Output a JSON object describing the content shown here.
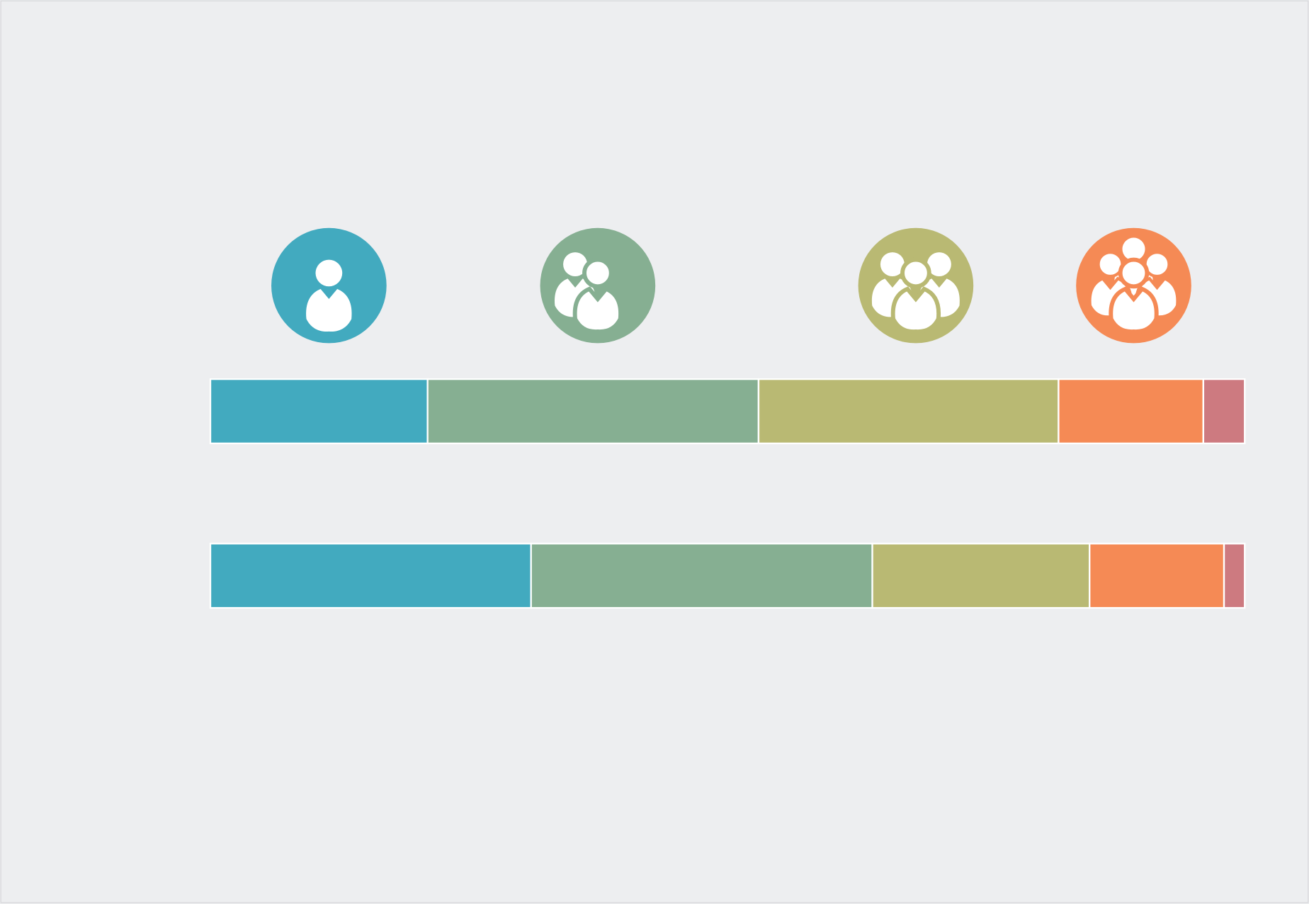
{
  "chart_data": {
    "type": "bar",
    "orientation": "horizontal",
    "stacked": true,
    "categories": [
      null,
      null
    ],
    "xlim": [
      0,
      100
    ],
    "series": [
      {
        "color": "#42aabf",
        "values": [
          21,
          31
        ]
      },
      {
        "color": "#86af92",
        "values": [
          32,
          33
        ]
      },
      {
        "color": "#b9b973",
        "values": [
          29,
          21
        ]
      },
      {
        "color": "#f58a55",
        "values": [
          14,
          13
        ]
      },
      {
        "color": "#cd7a80",
        "values": [
          4,
          2
        ]
      }
    ]
  }
}
